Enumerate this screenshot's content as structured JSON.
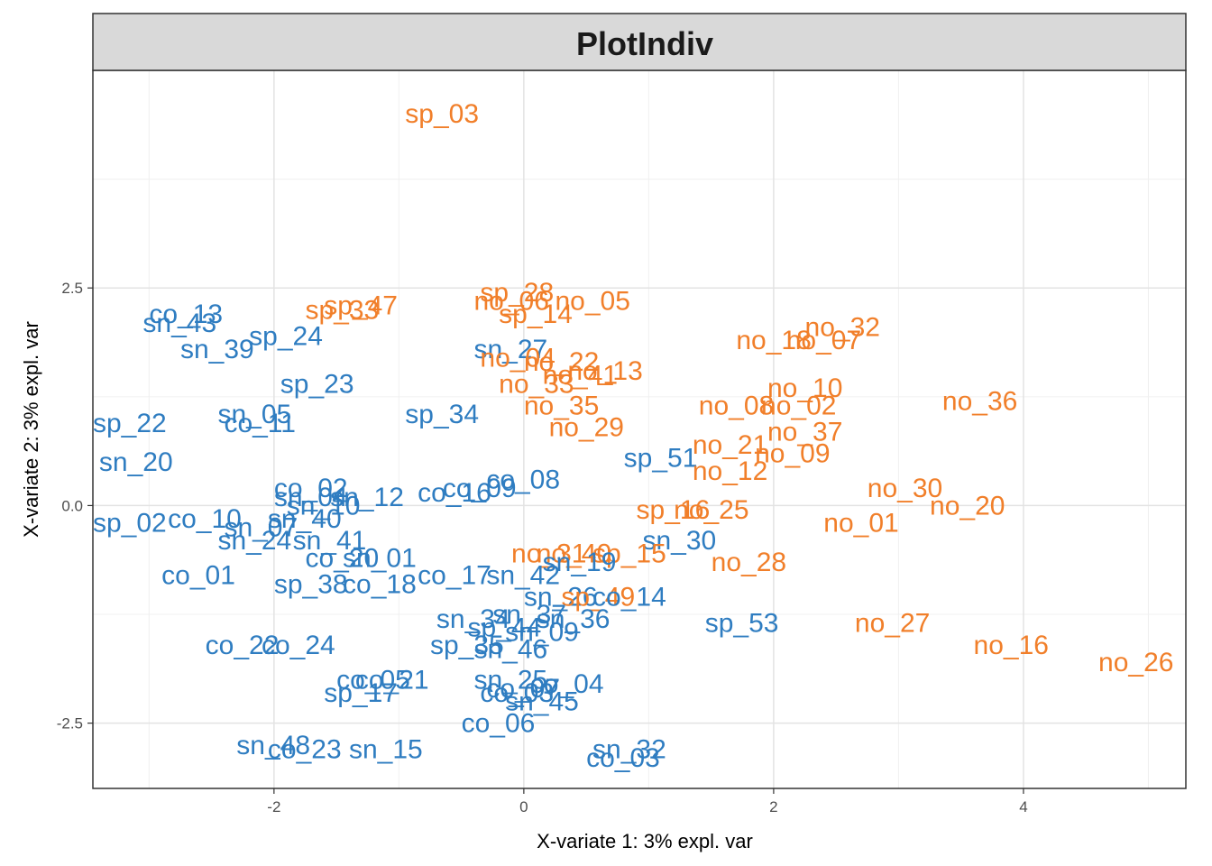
{
  "chart_data": {
    "type": "scatter",
    "title": "PlotIndiv",
    "xlabel": "X-variate 1: 3% expl. var",
    "ylabel": "X-variate 2: 3% expl. var",
    "xlim": [
      -3.45,
      5.3
    ],
    "ylim": [
      -3.25,
      5.0
    ],
    "x_ticks": [
      -2,
      0,
      2,
      4
    ],
    "x_tick_labels": [
      "-2",
      "0",
      "2",
      "4"
    ],
    "y_ticks": [
      -2.5,
      0.0,
      2.5
    ],
    "y_tick_labels": [
      "-2.5",
      "0.0",
      "2.5"
    ],
    "grid": true,
    "legend": "none",
    "group_colors": {
      "blue": "#2f7dc1",
      "orange": "#f17f2a"
    },
    "points": [
      {
        "label": "sp_03",
        "x": -0.95,
        "y": 4.5,
        "group": "orange"
      },
      {
        "label": "co_13",
        "x": -3.0,
        "y": 2.2,
        "group": "blue"
      },
      {
        "label": "sn_43",
        "x": -3.05,
        "y": 2.1,
        "group": "blue"
      },
      {
        "label": "sp_24",
        "x": -2.2,
        "y": 1.95,
        "group": "blue"
      },
      {
        "label": "sn_39",
        "x": -2.75,
        "y": 1.8,
        "group": "blue"
      },
      {
        "label": "sp_47",
        "x": -1.6,
        "y": 2.3,
        "group": "orange"
      },
      {
        "label": "sp_33",
        "x": -1.75,
        "y": 2.25,
        "group": "orange"
      },
      {
        "label": "sp_23",
        "x": -1.95,
        "y": 1.4,
        "group": "blue"
      },
      {
        "label": "sp_22",
        "x": -3.45,
        "y": 0.95,
        "group": "blue"
      },
      {
        "label": "sn_20",
        "x": -3.4,
        "y": 0.5,
        "group": "blue"
      },
      {
        "label": "sn_05",
        "x": -2.45,
        "y": 1.05,
        "group": "blue"
      },
      {
        "label": "co_11",
        "x": -2.4,
        "y": 0.95,
        "group": "blue"
      },
      {
        "label": "sp_34",
        "x": -0.95,
        "y": 1.05,
        "group": "blue"
      },
      {
        "label": "sp_28",
        "x": -0.35,
        "y": 2.45,
        "group": "orange"
      },
      {
        "label": "no_06",
        "x": -0.4,
        "y": 2.35,
        "group": "orange"
      },
      {
        "label": "no_05",
        "x": 0.25,
        "y": 2.35,
        "group": "orange"
      },
      {
        "label": "sp_14",
        "x": -0.2,
        "y": 2.2,
        "group": "orange"
      },
      {
        "label": "sn_27",
        "x": -0.4,
        "y": 1.8,
        "group": "blue"
      },
      {
        "label": "no_04",
        "x": -0.35,
        "y": 1.7,
        "group": "orange"
      },
      {
        "label": "no_22",
        "x": 0.0,
        "y": 1.65,
        "group": "orange"
      },
      {
        "label": "no_13",
        "x": 0.35,
        "y": 1.55,
        "group": "orange"
      },
      {
        "label": "no_41",
        "x": 0.15,
        "y": 1.5,
        "group": "orange"
      },
      {
        "label": "no_33",
        "x": -0.2,
        "y": 1.4,
        "group": "orange"
      },
      {
        "label": "no_35",
        "x": 0.0,
        "y": 1.15,
        "group": "orange"
      },
      {
        "label": "no_29",
        "x": 0.2,
        "y": 0.9,
        "group": "orange"
      },
      {
        "label": "no_32",
        "x": 2.25,
        "y": 2.05,
        "group": "orange"
      },
      {
        "label": "no_18",
        "x": 1.7,
        "y": 1.9,
        "group": "orange"
      },
      {
        "label": "no_07",
        "x": 2.1,
        "y": 1.9,
        "group": "orange"
      },
      {
        "label": "no_10",
        "x": 1.95,
        "y": 1.35,
        "group": "orange"
      },
      {
        "label": "no_08",
        "x": 1.4,
        "y": 1.15,
        "group": "orange"
      },
      {
        "label": "no_02",
        "x": 1.9,
        "y": 1.15,
        "group": "orange"
      },
      {
        "label": "no_36",
        "x": 3.35,
        "y": 1.2,
        "group": "orange"
      },
      {
        "label": "no_37",
        "x": 1.95,
        "y": 0.85,
        "group": "orange"
      },
      {
        "label": "no_21",
        "x": 1.35,
        "y": 0.7,
        "group": "orange"
      },
      {
        "label": "sp_51",
        "x": 0.8,
        "y": 0.55,
        "group": "blue"
      },
      {
        "label": "no_09",
        "x": 1.85,
        "y": 0.6,
        "group": "orange"
      },
      {
        "label": "no_12",
        "x": 1.35,
        "y": 0.4,
        "group": "orange"
      },
      {
        "label": "co_08",
        "x": -0.3,
        "y": 0.3,
        "group": "blue"
      },
      {
        "label": "co_09",
        "x": -0.65,
        "y": 0.2,
        "group": "blue"
      },
      {
        "label": "co_16",
        "x": -0.85,
        "y": 0.15,
        "group": "blue"
      },
      {
        "label": "co_02",
        "x": -2.0,
        "y": 0.2,
        "group": "blue"
      },
      {
        "label": "sn_12",
        "x": -1.55,
        "y": 0.1,
        "group": "blue"
      },
      {
        "label": "sn_04",
        "x": -2.0,
        "y": 0.1,
        "group": "blue"
      },
      {
        "label": "sn_10",
        "x": -1.9,
        "y": 0.0,
        "group": "blue"
      },
      {
        "label": "no_30",
        "x": 2.75,
        "y": 0.2,
        "group": "orange"
      },
      {
        "label": "no_20",
        "x": 3.25,
        "y": 0.0,
        "group": "orange"
      },
      {
        "label": "sp_16",
        "x": 0.9,
        "y": -0.05,
        "group": "orange"
      },
      {
        "label": "no_25",
        "x": 1.2,
        "y": -0.05,
        "group": "orange"
      },
      {
        "label": "no_01",
        "x": 2.4,
        "y": -0.2,
        "group": "orange"
      },
      {
        "label": "sp_02",
        "x": -3.45,
        "y": -0.2,
        "group": "blue"
      },
      {
        "label": "co_10",
        "x": -2.85,
        "y": -0.15,
        "group": "blue"
      },
      {
        "label": "sn_40",
        "x": -2.05,
        "y": -0.15,
        "group": "blue"
      },
      {
        "label": "sn_07",
        "x": -2.4,
        "y": -0.25,
        "group": "blue"
      },
      {
        "label": "sn_24",
        "x": -2.45,
        "y": -0.4,
        "group": "blue"
      },
      {
        "label": "sn_41",
        "x": -1.85,
        "y": -0.4,
        "group": "blue"
      },
      {
        "label": "sn_30",
        "x": 0.95,
        "y": -0.4,
        "group": "blue"
      },
      {
        "label": "co_20",
        "x": -1.75,
        "y": -0.6,
        "group": "blue"
      },
      {
        "label": "sn_01",
        "x": -1.45,
        "y": -0.6,
        "group": "blue"
      },
      {
        "label": "no_31",
        "x": -0.1,
        "y": -0.55,
        "group": "orange"
      },
      {
        "label": "no_40",
        "x": 0.1,
        "y": -0.55,
        "group": "orange"
      },
      {
        "label": "sp_15",
        "x": 0.55,
        "y": -0.55,
        "group": "orange"
      },
      {
        "label": "sn_19",
        "x": 0.15,
        "y": -0.65,
        "group": "blue"
      },
      {
        "label": "no_28",
        "x": 1.5,
        "y": -0.65,
        "group": "orange"
      },
      {
        "label": "co_01",
        "x": -2.9,
        "y": -0.8,
        "group": "blue"
      },
      {
        "label": "sp_38",
        "x": -2.0,
        "y": -0.9,
        "group": "blue"
      },
      {
        "label": "co_18",
        "x": -1.45,
        "y": -0.9,
        "group": "blue"
      },
      {
        "label": "co_17",
        "x": -0.85,
        "y": -0.8,
        "group": "blue"
      },
      {
        "label": "sn_42",
        "x": -0.3,
        "y": -0.8,
        "group": "blue"
      },
      {
        "label": "sn_26",
        "x": 0.0,
        "y": -1.05,
        "group": "blue"
      },
      {
        "label": "sp_49",
        "x": 0.3,
        "y": -1.05,
        "group": "orange"
      },
      {
        "label": "co_14",
        "x": 0.55,
        "y": -1.05,
        "group": "blue"
      },
      {
        "label": "sn_37",
        "x": -0.25,
        "y": -1.25,
        "group": "blue"
      },
      {
        "label": "sn_36",
        "x": 0.1,
        "y": -1.3,
        "group": "blue"
      },
      {
        "label": "sp_53",
        "x": 1.45,
        "y": -1.35,
        "group": "blue"
      },
      {
        "label": "no_27",
        "x": 2.65,
        "y": -1.35,
        "group": "orange"
      },
      {
        "label": "sn_34",
        "x": -0.7,
        "y": -1.3,
        "group": "blue"
      },
      {
        "label": "sp_44",
        "x": -0.45,
        "y": -1.4,
        "group": "blue"
      },
      {
        "label": "sn_09",
        "x": -0.15,
        "y": -1.45,
        "group": "blue"
      },
      {
        "label": "no_16",
        "x": 3.6,
        "y": -1.6,
        "group": "orange"
      },
      {
        "label": "co_22",
        "x": -2.55,
        "y": -1.6,
        "group": "blue"
      },
      {
        "label": "co_24",
        "x": -2.1,
        "y": -1.6,
        "group": "blue"
      },
      {
        "label": "sp_35",
        "x": -0.75,
        "y": -1.6,
        "group": "blue"
      },
      {
        "label": "sn_46",
        "x": -0.4,
        "y": -1.65,
        "group": "blue"
      },
      {
        "label": "no_26",
        "x": 4.6,
        "y": -1.8,
        "group": "orange"
      },
      {
        "label": "co_05",
        "x": -1.5,
        "y": -2.0,
        "group": "blue"
      },
      {
        "label": "co_21",
        "x": -1.35,
        "y": -2.0,
        "group": "blue"
      },
      {
        "label": "sn_25",
        "x": -0.4,
        "y": -2.0,
        "group": "blue"
      },
      {
        "label": "co_04",
        "x": 0.05,
        "y": -2.05,
        "group": "blue"
      },
      {
        "label": "sp_17",
        "x": -1.6,
        "y": -2.15,
        "group": "blue"
      },
      {
        "label": "co_07",
        "x": -0.3,
        "y": -2.1,
        "group": "blue"
      },
      {
        "label": "co_03",
        "x": -0.35,
        "y": -2.15,
        "group": "blue"
      },
      {
        "label": "sn_45",
        "x": -0.15,
        "y": -2.25,
        "group": "blue"
      },
      {
        "label": "co_06",
        "x": -0.5,
        "y": -2.5,
        "group": "blue"
      },
      {
        "label": "sn_48",
        "x": -2.3,
        "y": -2.75,
        "group": "blue"
      },
      {
        "label": "co_23",
        "x": -2.05,
        "y": -2.8,
        "group": "blue"
      },
      {
        "label": "sn_15",
        "x": -1.4,
        "y": -2.8,
        "group": "blue"
      },
      {
        "label": "sn_32",
        "x": 0.55,
        "y": -2.8,
        "group": "blue"
      },
      {
        "label": "co_03",
        "x": 0.5,
        "y": -2.9,
        "group": "blue"
      }
    ]
  }
}
